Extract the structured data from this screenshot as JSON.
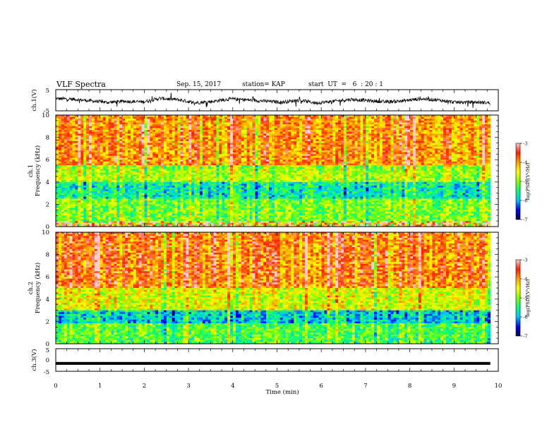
{
  "header": {
    "title": "VLF Spectra",
    "date": "Sep. 15, 2017",
    "station": "station= KAP",
    "start": "start  UT  =   6  : 20 : 1"
  },
  "chart_data": [
    {
      "type": "line",
      "name": "ch1-waveform",
      "ylabel": "ch.1(V)",
      "ylim": [
        -5,
        5
      ],
      "y_ticks": [
        "5",
        "-5"
      ],
      "xlim": [
        0,
        10
      ],
      "x_end_min": 9.82,
      "approx_level_v": [
        0.8,
        0.5,
        -0.3,
        -1.0,
        -0.5,
        -0.8,
        0.9,
        0.3,
        -1.2,
        -0.6,
        0.6,
        0.2,
        -0.4,
        -0.9,
        0.0,
        -1.3,
        -0.5,
        0.4,
        -0.2,
        -0.8,
        -0.3,
        0.7,
        0.1,
        -1.0,
        -0.9,
        -1.2
      ]
    },
    {
      "type": "heatmap",
      "name": "ch1-spectrogram",
      "ylabel_top": "ch.1",
      "ylabel": "Frequency  (kHz)",
      "ylim": [
        0,
        10
      ],
      "y_ticks": [
        "0",
        "2",
        "4",
        "6",
        "8",
        "10"
      ],
      "xlim": [
        0,
        10
      ],
      "x_end_min": 9.82,
      "colorbar": {
        "label": "log(PSD)(V²/Hz)",
        "range": [
          -7,
          -3
        ],
        "ticks": [
          "-3",
          "-4",
          "-5",
          "-6",
          "-7"
        ],
        "colors": [
          "#000040",
          "#0000ff",
          "#00c0ff",
          "#00ff80",
          "#80ff00",
          "#ffff00",
          "#ffa000",
          "#ff2000",
          "#ffd0d0"
        ]
      },
      "freq_bands_khz": [
        {
          "from": 0,
          "to": 0.5,
          "level": "mixed"
        },
        {
          "from": 0.5,
          "to": 2.5,
          "level": -5.0
        },
        {
          "from": 2.5,
          "to": 4.0,
          "level": -5.6
        },
        {
          "from": 4.0,
          "to": 5.5,
          "level": -4.8
        },
        {
          "from": 5.5,
          "to": 10,
          "level": -3.9
        }
      ]
    },
    {
      "type": "heatmap",
      "name": "ch2-spectrogram",
      "ylabel_top": "ch.2",
      "ylabel": "Frequency  (kHz)",
      "ylim": [
        0,
        10
      ],
      "y_ticks": [
        "0",
        "2",
        "4",
        "6",
        "8",
        "10"
      ],
      "xlim": [
        0,
        10
      ],
      "x_end_min": 9.82,
      "colorbar": {
        "label": "log(PSD)(V²/Hz)",
        "range": [
          -7,
          -3
        ],
        "ticks": [
          "-3",
          "-4",
          "-5",
          "-6",
          "-7"
        ],
        "colors": [
          "#000040",
          "#0000ff",
          "#00c0ff",
          "#00ff80",
          "#80ff00",
          "#ffff00",
          "#ffa000",
          "#ff2000",
          "#ffd0d0"
        ]
      },
      "freq_bands_khz": [
        {
          "from": 0,
          "to": 1.8,
          "level": -5.2
        },
        {
          "from": 1.8,
          "to": 3.0,
          "level": -5.8
        },
        {
          "from": 3.0,
          "to": 5.0,
          "level": -4.6
        },
        {
          "from": 5.0,
          "to": 10,
          "level": -3.8
        }
      ]
    },
    {
      "type": "line",
      "name": "ch3-waveform",
      "ylabel": "ch.3(V)",
      "ylim": [
        -5,
        5
      ],
      "y_ticks": [
        "5",
        "0",
        "-5"
      ],
      "xlim": [
        0,
        10
      ],
      "x_end_min": 9.82,
      "x_ticks": [
        "0",
        "1",
        "2",
        "3",
        "4",
        "5",
        "6",
        "7",
        "8",
        "9",
        "10"
      ],
      "xlabel": "Time  (min)",
      "constant_level_v": -1.5
    }
  ]
}
